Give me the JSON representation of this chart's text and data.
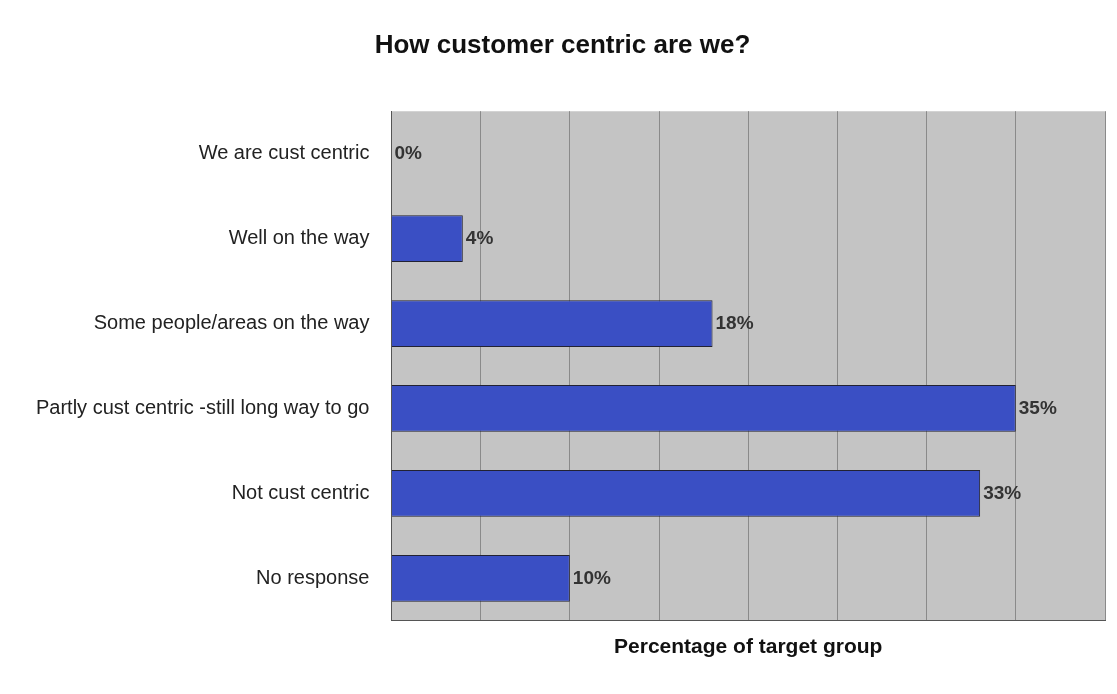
{
  "chart_data": {
    "type": "bar",
    "orientation": "horizontal",
    "title": "How customer centric are we?",
    "xlabel": "Percentage of target group",
    "categories": [
      "We are cust centric",
      "Well on the way",
      "Some people/areas on the way",
      "Partly cust centric -still long way to go",
      "Not cust centric",
      "No response"
    ],
    "values": [
      0,
      4,
      18,
      35,
      33,
      10
    ],
    "value_labels": [
      "0%",
      "4%",
      "18%",
      "35%",
      "33%",
      "10%"
    ],
    "color": "#3a4fc4",
    "xlim": [
      0,
      40
    ],
    "xticks": [
      {
        "value": 0,
        "label": null
      },
      {
        "value": 5,
        "label": null
      },
      {
        "value": 10,
        "label": null
      },
      {
        "value": 15,
        "label": null
      },
      {
        "value": 20,
        "label": null
      },
      {
        "value": 25,
        "label": null
      },
      {
        "value": 30,
        "label": null
      },
      {
        "value": 35,
        "label": null
      },
      {
        "value": 40,
        "label": null
      }
    ],
    "grid": "x",
    "tick_labels": "y",
    "legend": false
  }
}
